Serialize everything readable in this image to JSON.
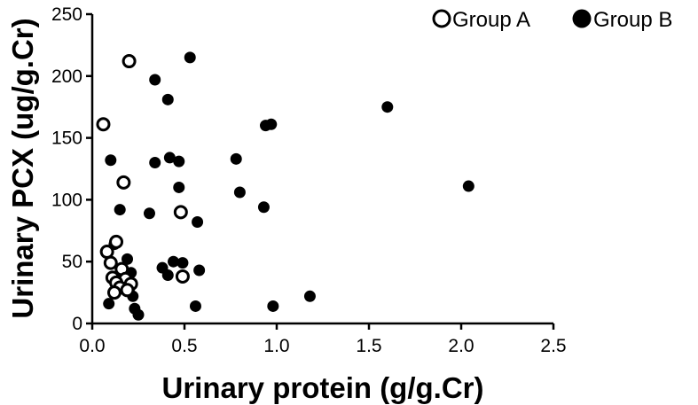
{
  "chart_data": {
    "type": "scatter",
    "title": "",
    "xlabel": "Urinary protein (g/g.Cr)",
    "ylabel": "Urinary PCX (ug/g.Cr)",
    "xlim": [
      0,
      2.5
    ],
    "ylim": [
      0,
      250
    ],
    "xticks": [
      "0.0",
      "0.5",
      "1.0",
      "1.5",
      "2.0",
      "2.5"
    ],
    "yticks": [
      "0",
      "50",
      "100",
      "150",
      "200",
      "250"
    ],
    "grid": false,
    "legend_position": "top-right",
    "series": [
      {
        "name": "Group A",
        "marker": "open-circle",
        "color": "#000000",
        "points": [
          {
            "x": 0.2,
            "y": 212
          },
          {
            "x": 0.06,
            "y": 161
          },
          {
            "x": 0.17,
            "y": 114
          },
          {
            "x": 0.48,
            "y": 90
          },
          {
            "x": 0.13,
            "y": 66
          },
          {
            "x": 0.08,
            "y": 58
          },
          {
            "x": 0.1,
            "y": 49
          },
          {
            "x": 0.16,
            "y": 44
          },
          {
            "x": 0.49,
            "y": 38
          },
          {
            "x": 0.11,
            "y": 37
          },
          {
            "x": 0.18,
            "y": 36
          },
          {
            "x": 0.13,
            "y": 33
          },
          {
            "x": 0.21,
            "y": 32
          },
          {
            "x": 0.15,
            "y": 29
          },
          {
            "x": 0.12,
            "y": 25
          },
          {
            "x": 0.19,
            "y": 27
          }
        ]
      },
      {
        "name": "Group B",
        "marker": "filled-circle",
        "color": "#000000",
        "points": [
          {
            "x": 0.53,
            "y": 215
          },
          {
            "x": 0.34,
            "y": 197
          },
          {
            "x": 0.41,
            "y": 181
          },
          {
            "x": 1.6,
            "y": 175
          },
          {
            "x": 0.94,
            "y": 160
          },
          {
            "x": 0.97,
            "y": 161
          },
          {
            "x": 0.42,
            "y": 134
          },
          {
            "x": 0.78,
            "y": 133
          },
          {
            "x": 0.1,
            "y": 132
          },
          {
            "x": 0.34,
            "y": 130
          },
          {
            "x": 0.47,
            "y": 131
          },
          {
            "x": 2.04,
            "y": 111
          },
          {
            "x": 0.47,
            "y": 110
          },
          {
            "x": 0.8,
            "y": 106
          },
          {
            "x": 0.93,
            "y": 94
          },
          {
            "x": 0.15,
            "y": 92
          },
          {
            "x": 0.31,
            "y": 89
          },
          {
            "x": 0.57,
            "y": 82
          },
          {
            "x": 0.12,
            "y": 64
          },
          {
            "x": 0.19,
            "y": 52
          },
          {
            "x": 0.44,
            "y": 50
          },
          {
            "x": 0.49,
            "y": 49
          },
          {
            "x": 0.38,
            "y": 45
          },
          {
            "x": 0.58,
            "y": 43
          },
          {
            "x": 0.21,
            "y": 41
          },
          {
            "x": 0.41,
            "y": 39
          },
          {
            "x": 0.17,
            "y": 35
          },
          {
            "x": 0.2,
            "y": 28
          },
          {
            "x": 0.22,
            "y": 22
          },
          {
            "x": 1.18,
            "y": 22
          },
          {
            "x": 0.09,
            "y": 16
          },
          {
            "x": 0.56,
            "y": 14
          },
          {
            "x": 0.98,
            "y": 14
          },
          {
            "x": 0.23,
            "y": 12
          },
          {
            "x": 0.25,
            "y": 7
          }
        ]
      }
    ]
  }
}
